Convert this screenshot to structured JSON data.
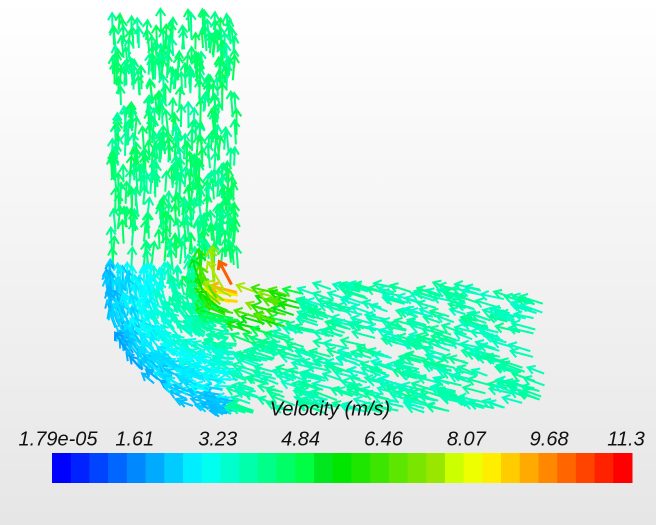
{
  "colorbar": {
    "title": "Velocity (m/s)",
    "tick_labels": [
      "1.79e-05",
      "1.61",
      "3.23",
      "4.84",
      "6.46",
      "8.07",
      "9.68",
      "11.3"
    ]
  }
}
